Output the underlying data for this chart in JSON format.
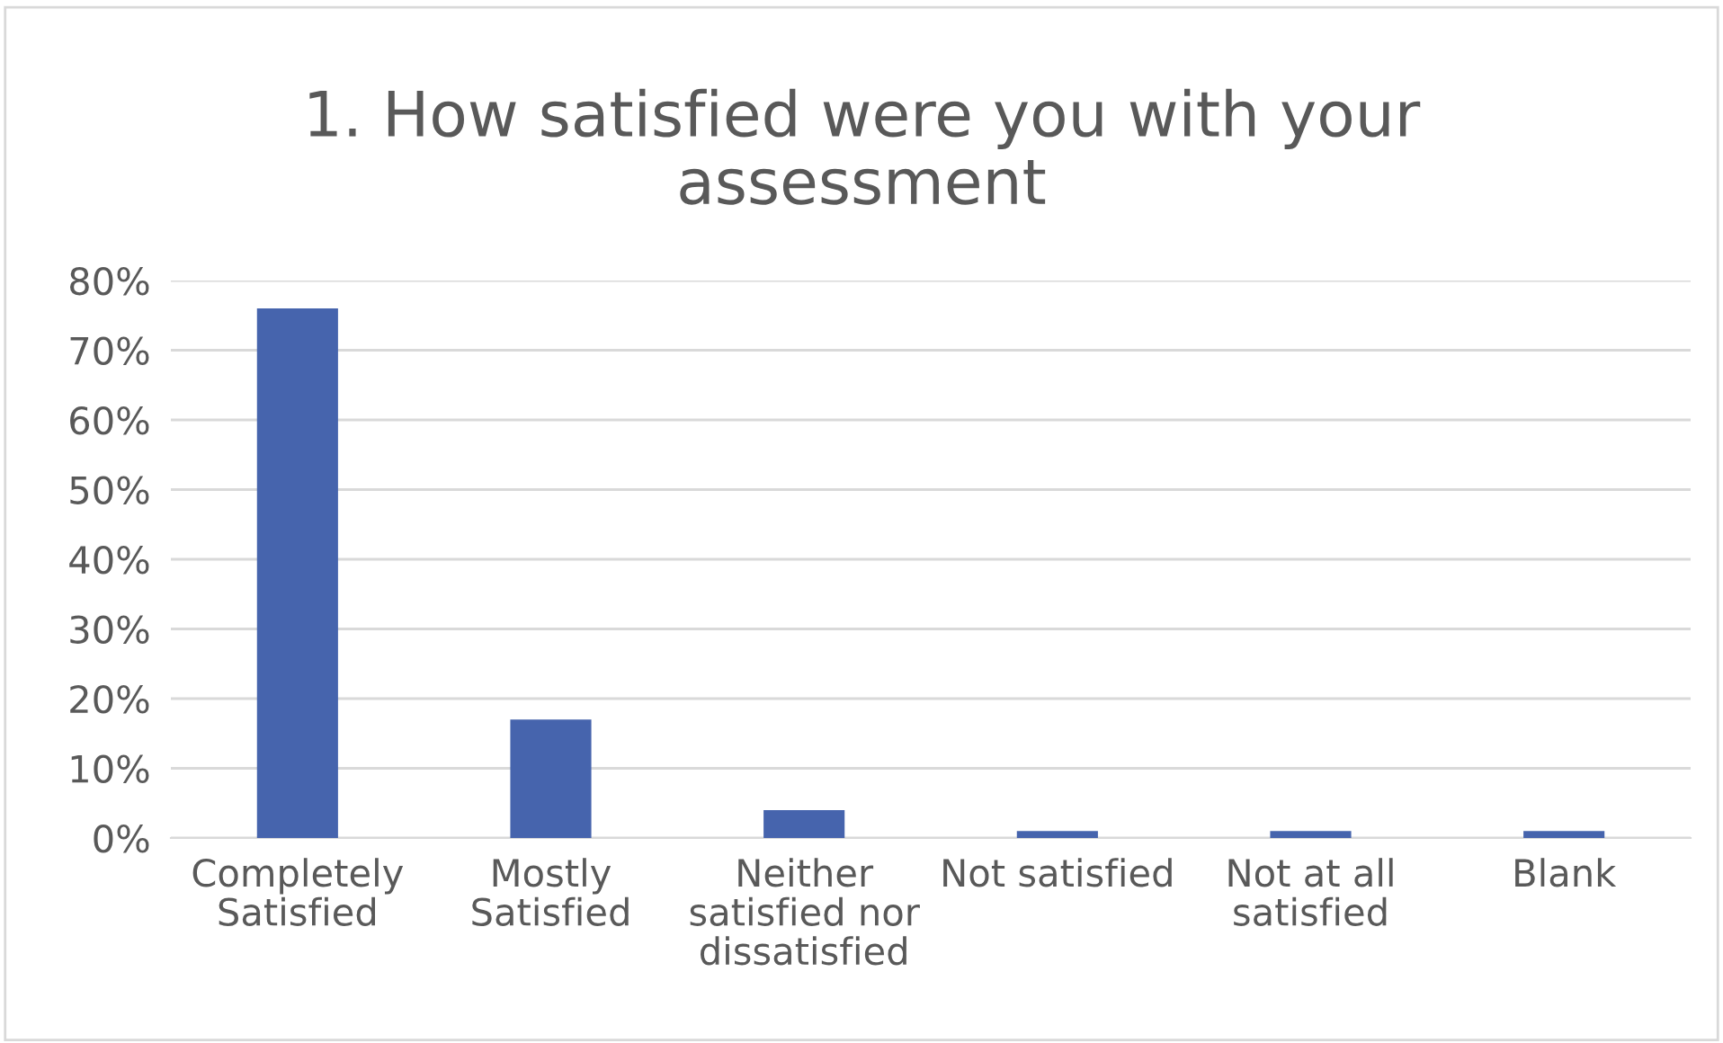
{
  "chart_data": {
    "type": "bar",
    "title": "1. How satisfied were you with your\nassessment",
    "categories": [
      "Completely\nSatisfied",
      "Mostly\nSatisfied",
      "Neither\nsatisfied nor\ndissatisfied",
      "Not satisfied",
      "Not at all\nsatisfied",
      "Blank"
    ],
    "values": [
      76,
      17,
      4,
      1,
      1,
      1
    ],
    "color": "#4664ad",
    "ylim": [
      0,
      80
    ],
    "yticks": [
      {
        "value": 0,
        "label": "0%"
      },
      {
        "value": 10,
        "label": "10%"
      },
      {
        "value": 20,
        "label": "20%"
      },
      {
        "value": 30,
        "label": "30%"
      },
      {
        "value": 40,
        "label": "40%"
      },
      {
        "value": 50,
        "label": "50%"
      },
      {
        "value": 60,
        "label": "60%"
      },
      {
        "value": 70,
        "label": "70%"
      },
      {
        "value": 80,
        "label": "80%"
      }
    ],
    "grid": "y",
    "legend": false
  }
}
